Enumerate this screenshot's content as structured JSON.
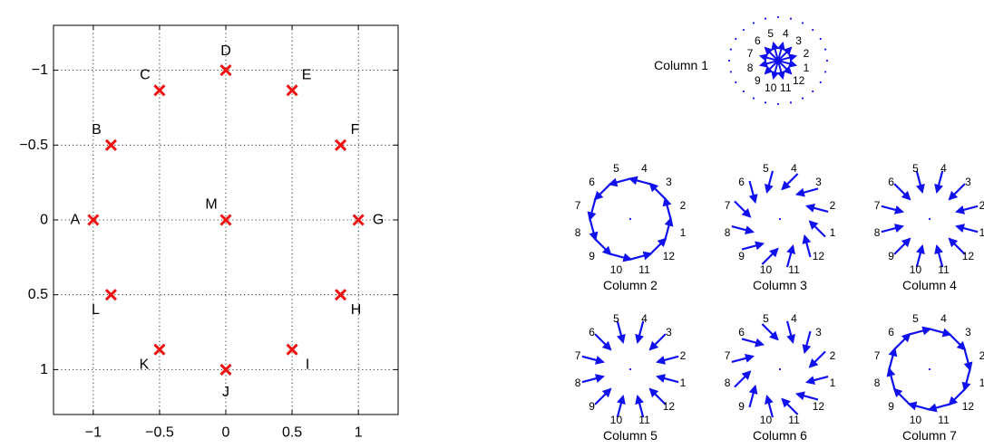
{
  "chart_data": [
    {
      "type": "scatter",
      "xlim": [
        -1.3,
        1.3
      ],
      "ylim": [
        -1.3,
        1.3
      ],
      "y_reversed": true,
      "grid": true,
      "grid_style": "dotted",
      "x_ticks": [
        -1,
        -0.5,
        0,
        0.5,
        1
      ],
      "y_ticks": [
        -1,
        -0.5,
        0,
        0.5,
        1
      ],
      "x_tick_labels": [
        "−1",
        "−0.5",
        "0",
        "0.5",
        "1"
      ],
      "y_tick_labels": [
        "−1",
        "−0.5",
        "0",
        "0.5",
        "1"
      ],
      "marker": "x",
      "marker_color": "#ee1111",
      "points": [
        {
          "label": "A",
          "x": -1,
          "y": 0,
          "label_pos": "left"
        },
        {
          "label": "B",
          "x": -0.866,
          "y": -0.5,
          "label_pos": "upper-left"
        },
        {
          "label": "C",
          "x": -0.5,
          "y": -0.866,
          "label_pos": "upper-left"
        },
        {
          "label": "D",
          "x": 0,
          "y": -1,
          "label_pos": "top"
        },
        {
          "label": "E",
          "x": 0.5,
          "y": -0.866,
          "label_pos": "upper-right"
        },
        {
          "label": "F",
          "x": 0.866,
          "y": -0.5,
          "label_pos": "upper-right"
        },
        {
          "label": "G",
          "x": 1,
          "y": 0,
          "label_pos": "right"
        },
        {
          "label": "H",
          "x": 0.866,
          "y": 0.5,
          "label_pos": "lower-right"
        },
        {
          "label": "I",
          "x": 0.5,
          "y": 0.866,
          "label_pos": "lower-right"
        },
        {
          "label": "J",
          "x": 0,
          "y": 1,
          "label_pos": "bottom"
        },
        {
          "label": "K",
          "x": -0.5,
          "y": 0.866,
          "label_pos": "lower-left"
        },
        {
          "label": "L",
          "x": -0.866,
          "y": 0.5,
          "label_pos": "lower-left"
        },
        {
          "label": "M",
          "x": 0,
          "y": 0,
          "label_pos": "upper-left"
        }
      ]
    },
    {
      "type": "compass",
      "arrow_color": "#1111ee",
      "dot_color": "#1111ee",
      "arrow_labels": [
        "1",
        "2",
        "3",
        "4",
        "5",
        "6",
        "7",
        "8",
        "9",
        "10",
        "11",
        "12"
      ],
      "label_angles_deg": [
        -15,
        15,
        45,
        75,
        105,
        135,
        165,
        195,
        225,
        255,
        285,
        315
      ],
      "panels": [
        {
          "title": "Column 1",
          "arrangement": "star",
          "dot_ring": true
        },
        {
          "title": "Column 2",
          "arrangement": "ring",
          "arrow_rotation_deg": 90
        },
        {
          "title": "Column 3",
          "arrangement": "ring",
          "arrow_rotation_deg": 150
        },
        {
          "title": "Column 4",
          "arrangement": "ring",
          "arrow_rotation_deg": 180
        },
        {
          "title": "Column 5",
          "arrangement": "ring",
          "arrow_rotation_deg": 180
        },
        {
          "title": "Column 6",
          "arrangement": "ring",
          "arrow_rotation_deg": 210
        },
        {
          "title": "Column 7",
          "arrangement": "ring",
          "arrow_rotation_deg": 270
        }
      ]
    }
  ]
}
